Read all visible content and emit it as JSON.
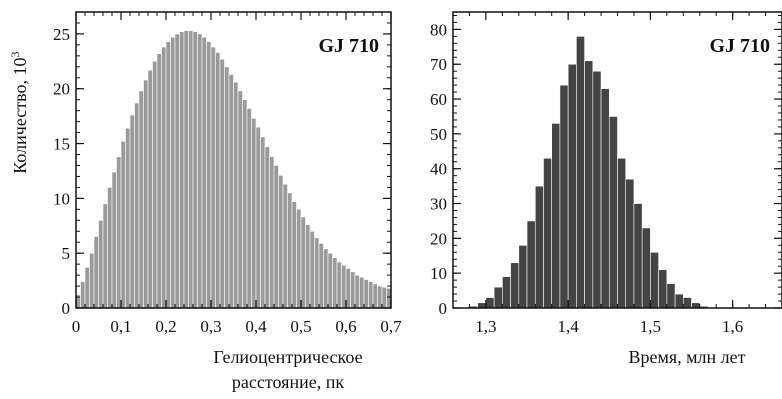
{
  "chart_data": [
    {
      "id": "left",
      "type": "bar",
      "title": "GJ 710",
      "xlabel": [
        "Гелиоцентрическое",
        "расстояние, пк"
      ],
      "ylabel": "Количество, 10",
      "ylabel_sup": "3",
      "xlim": [
        0,
        0.7
      ],
      "ylim": [
        0,
        27
      ],
      "xticks": [
        0,
        0.1,
        0.2,
        0.3,
        0.4,
        0.5,
        0.6,
        0.7
      ],
      "xtick_labels": [
        "0",
        "0,1",
        "0,2",
        "0,3",
        "0,4",
        "0,5",
        "0,6",
        "0,7"
      ],
      "yticks": [
        0,
        5,
        10,
        15,
        20,
        25
      ],
      "ytick_labels": [
        "0",
        "5",
        "10",
        "15",
        "20",
        "25"
      ],
      "bin_width": 0.01,
      "bin_start": 0.0,
      "values": [
        1.2,
        2.4,
        3.7,
        5.0,
        6.5,
        8.0,
        9.5,
        11.0,
        12.4,
        13.8,
        15.2,
        16.4,
        17.6,
        18.7,
        19.8,
        20.8,
        21.7,
        22.5,
        23.2,
        23.8,
        24.3,
        24.7,
        25.0,
        25.2,
        25.3,
        25.3,
        25.2,
        25.0,
        24.7,
        24.3,
        23.8,
        23.3,
        22.7,
        22.0,
        21.3,
        20.6,
        19.8,
        19.0,
        18.2,
        17.3,
        16.5,
        15.6,
        14.7,
        13.8,
        13.0,
        12.1,
        11.3,
        10.5,
        9.7,
        9.0,
        8.3,
        7.6,
        7.0,
        6.4,
        5.9,
        5.4,
        5.0,
        4.6,
        4.2,
        3.9,
        3.6,
        3.3,
        3.0,
        2.8,
        2.6,
        2.4,
        2.2,
        2.0,
        1.9,
        1.8
      ],
      "bar_color": "#9a9a9a",
      "legend_position": "top-right"
    },
    {
      "id": "right",
      "type": "bar",
      "title": "GJ 710",
      "xlabel": [
        "Время, млн лет"
      ],
      "ylabel": "",
      "xlim": [
        1.26,
        1.66
      ],
      "ylim": [
        0,
        85
      ],
      "xticks": [
        1.3,
        1.4,
        1.5,
        1.6
      ],
      "xtick_labels": [
        "1,3",
        "1,4",
        "1,5",
        "1,6"
      ],
      "yticks": [
        0,
        10,
        20,
        30,
        40,
        50,
        60,
        70,
        80
      ],
      "ytick_labels": [
        "0",
        "10",
        "20",
        "30",
        "40",
        "50",
        "60",
        "70",
        "80"
      ],
      "bin_width": 0.01,
      "bin_start": 1.28,
      "values": [
        0.5,
        1.5,
        3,
        6,
        9,
        13,
        18,
        25,
        35,
        43,
        53,
        64,
        70,
        78,
        71,
        68,
        63,
        55,
        43,
        37,
        30,
        23,
        16,
        11,
        7,
        4,
        3,
        1.5,
        0.5
      ],
      "bar_color": "#444444",
      "legend_position": "top-right"
    }
  ]
}
